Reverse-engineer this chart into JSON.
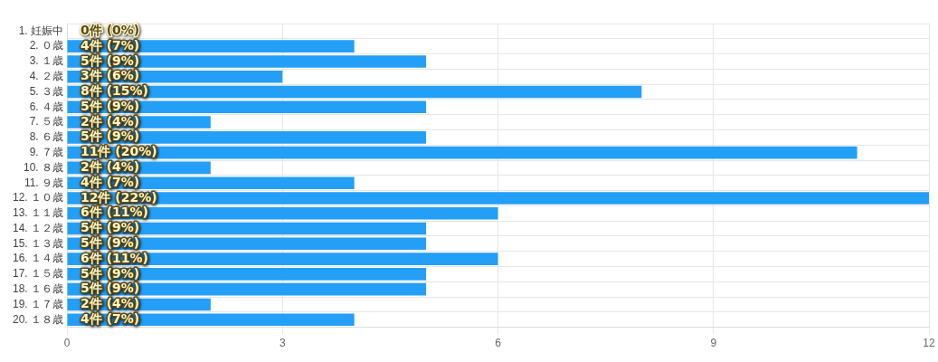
{
  "chart_data": {
    "type": "bar",
    "orientation": "horizontal",
    "categories": [
      "1. 妊娠中",
      "2. ０歳",
      "3. １歳",
      "4. ２歳",
      "5. ３歳",
      "6. ４歳",
      "7. ５歳",
      "8. ６歳",
      "9. ７歳",
      "10. ８歳",
      "11. ９歳",
      "12. １０歳",
      "13. １１歳",
      "14. １２歳",
      "15. １３歳",
      "16. １４歳",
      "17. １５歳",
      "18. １６歳",
      "19. １７歳",
      "20. １８歳"
    ],
    "values": [
      0,
      4,
      5,
      3,
      8,
      5,
      2,
      5,
      11,
      2,
      4,
      12,
      6,
      5,
      5,
      6,
      5,
      5,
      2,
      4
    ],
    "value_labels": [
      "0件 (0%)",
      "4件 (7%)",
      "5件 (9%)",
      "3件 (6%)",
      "8件 (15%)",
      "5件 (9%)",
      "2件 (4%)",
      "5件 (9%)",
      "11件 (20%)",
      "2件 (4%)",
      "4件 (7%)",
      "12件 (22%)",
      "6件 (11%)",
      "5件 (9%)",
      "5件 (9%)",
      "6件 (11%)",
      "5件 (9%)",
      "5件 (9%)",
      "2件 (4%)",
      "4件 (7%)"
    ],
    "color": "#239ff7",
    "xlim": [
      0,
      12
    ],
    "xticks": [
      0,
      3,
      6,
      9,
      12
    ],
    "grid": true,
    "legend": false
  }
}
